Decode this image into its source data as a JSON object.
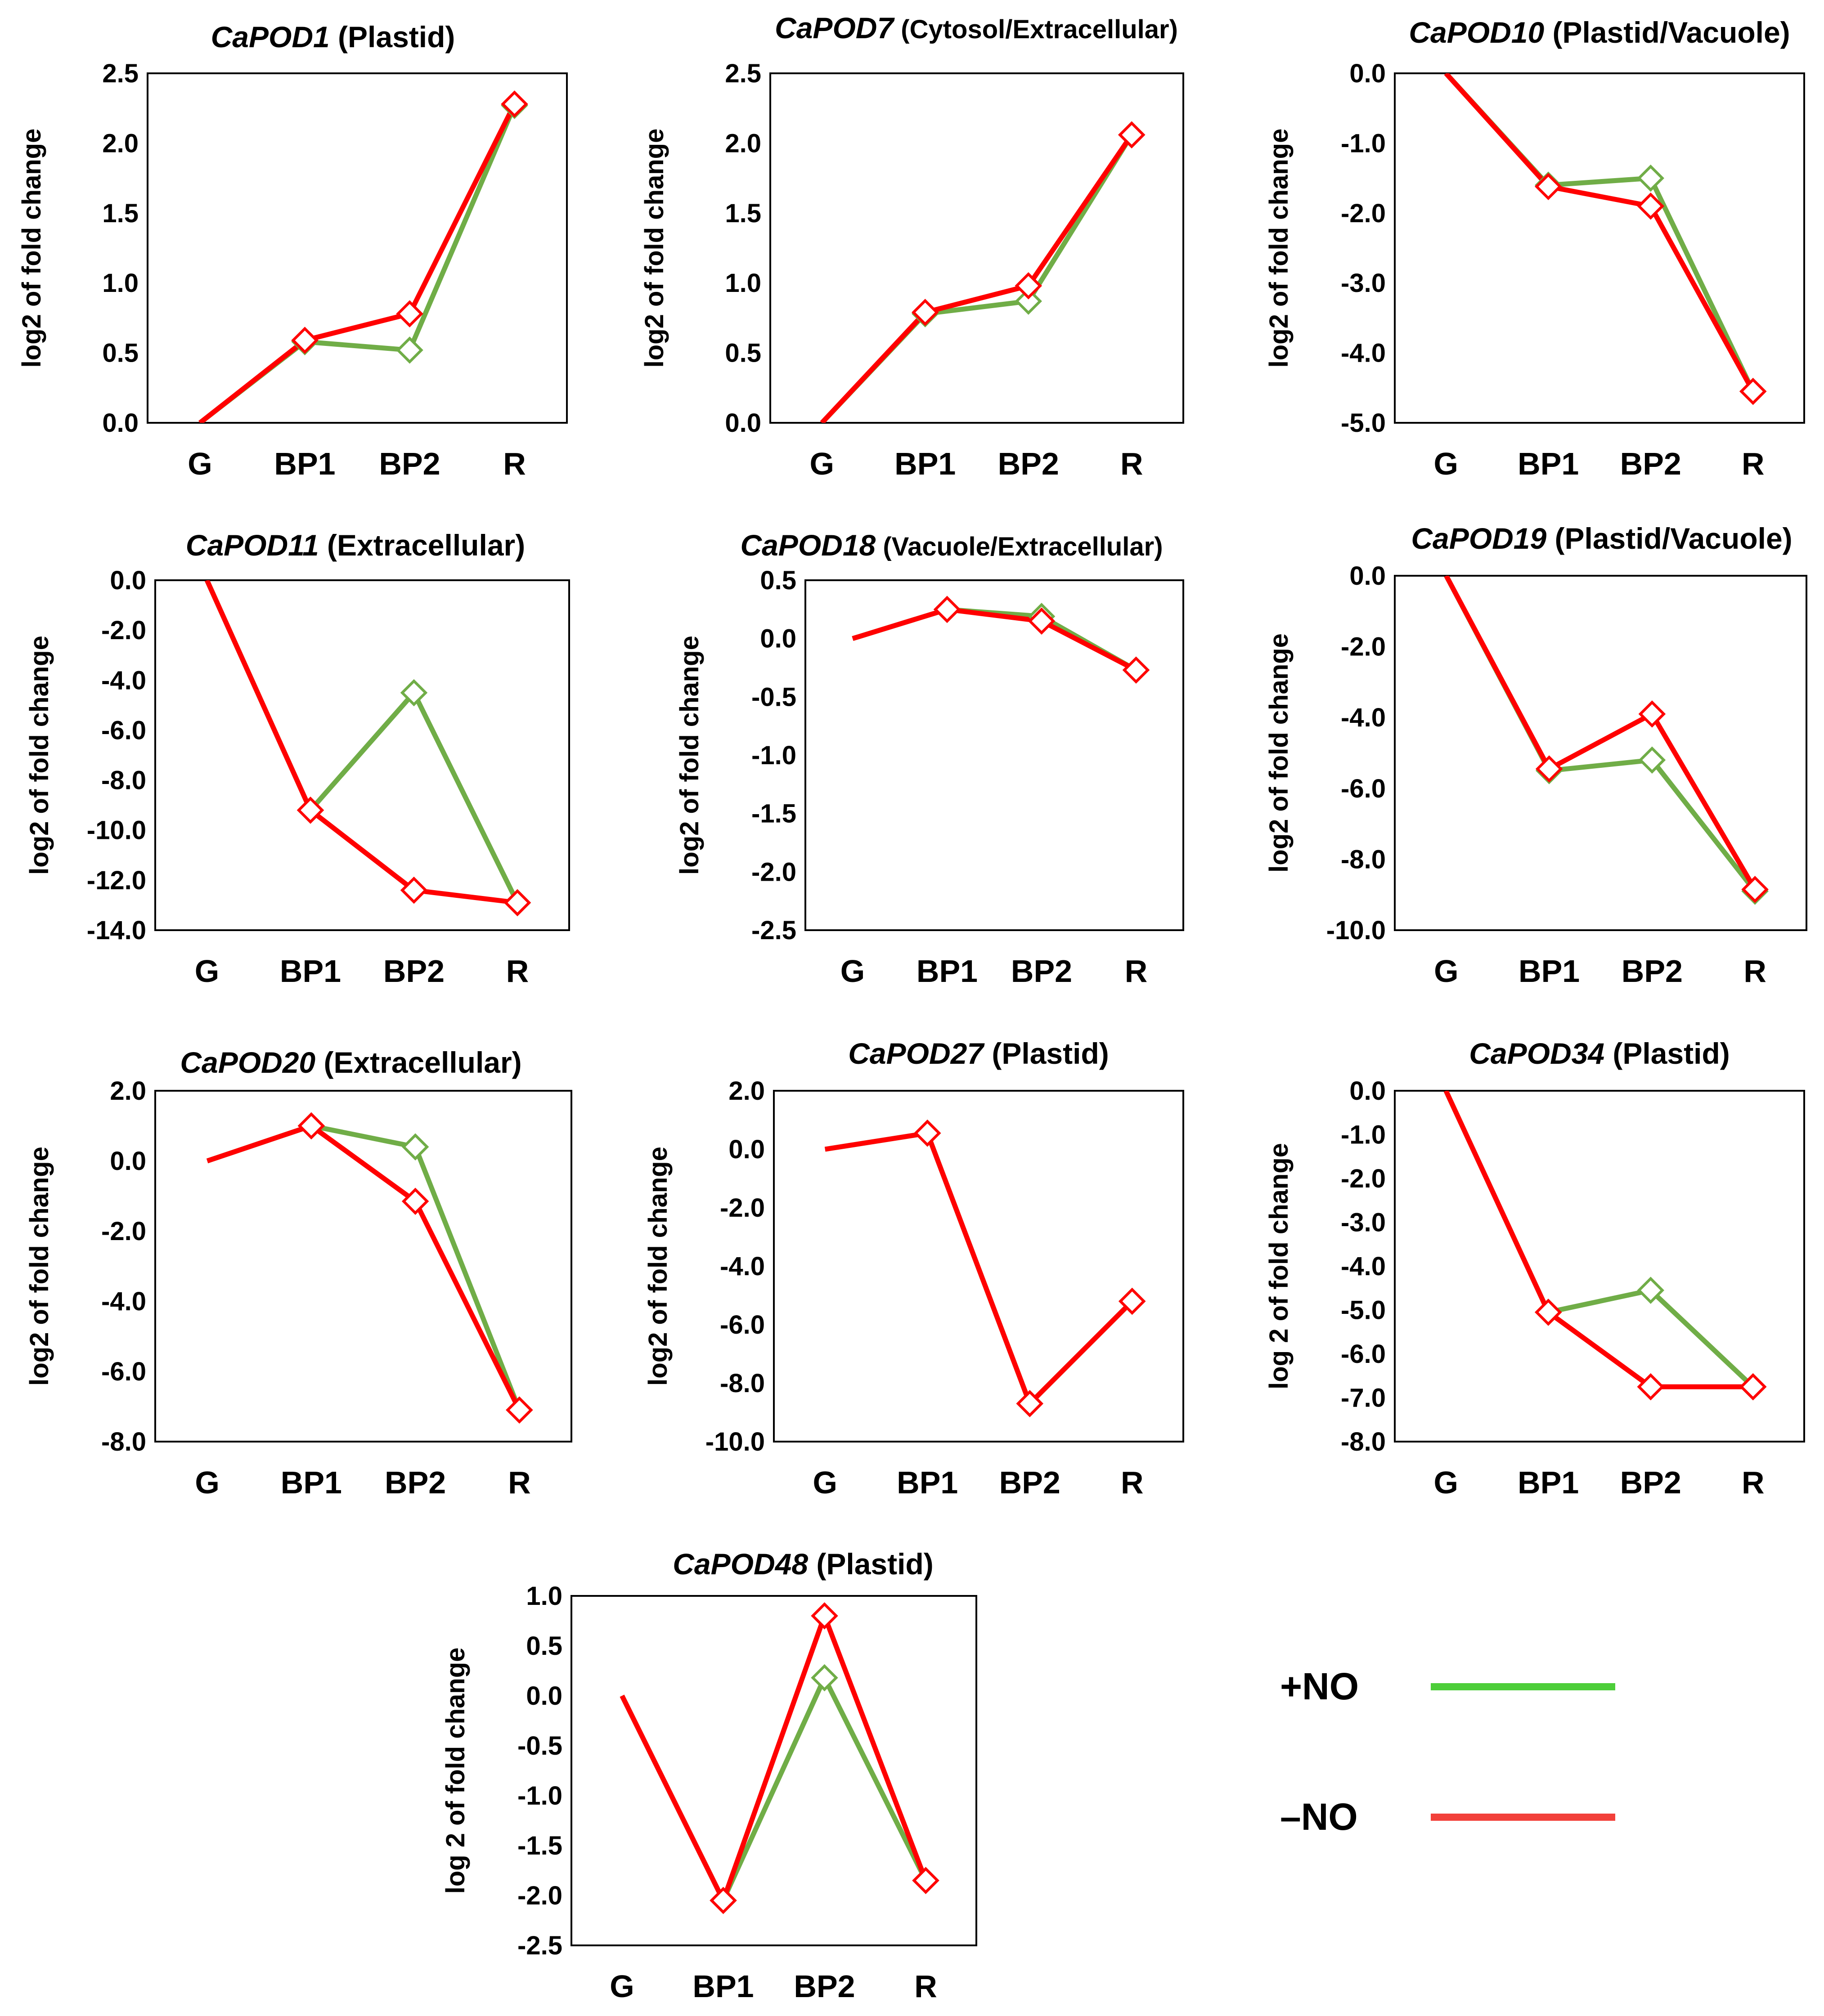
{
  "legend": [
    {
      "label": "+NO",
      "color": "#4dce3a"
    },
    {
      "label": "–NO",
      "color": "#f2403a"
    }
  ],
  "colors": {
    "plus_line": "#70ad47",
    "minus_line": "#ff0000",
    "marker_plus": "#70ad47",
    "marker_minus": "#ff0000",
    "legend_plus": "#4dce3a",
    "legend_minus": "#f2403a"
  },
  "chart_data": [
    {
      "type": "line",
      "gene": "CaPOD1",
      "loc": " (Plastid)",
      "ylabel": "log2 of fold change",
      "categories": [
        "G",
        "BP1",
        "BP2",
        "R"
      ],
      "ylim": [
        0,
        2.5
      ],
      "yticks": [
        "0.0",
        "0.5",
        "1.0",
        "1.5",
        "2.0",
        "2.5"
      ],
      "series": [
        {
          "name": "+NO",
          "values": [
            0,
            0.58,
            0.52,
            2.27
          ]
        },
        {
          "name": "–NO",
          "values": [
            0,
            0.59,
            0.78,
            2.28
          ]
        }
      ]
    },
    {
      "type": "line",
      "gene": "CaPOD7",
      "loc": " (Cytosol/Extracellular)",
      "ylabel": "log2 of fold change",
      "categories": [
        "G",
        "BP1",
        "BP2",
        "R"
      ],
      "ylim": [
        0,
        2.5
      ],
      "yticks": [
        "0.0",
        "0.5",
        "1.0",
        "1.5",
        "2.0",
        "2.5"
      ],
      "series": [
        {
          "name": "+NO",
          "values": [
            0,
            0.78,
            0.87,
            2.06
          ]
        },
        {
          "name": "–NO",
          "values": [
            0,
            0.79,
            0.98,
            2.06
          ]
        }
      ]
    },
    {
      "type": "line",
      "gene": "CaPOD10",
      "loc": " (Plastid/Vacuole)",
      "ylabel": "log2 of fold change",
      "categories": [
        "G",
        "BP1",
        "BP2",
        "R"
      ],
      "ylim": [
        -5,
        0
      ],
      "yticks": [
        "0.0",
        "-1.0",
        "-2.0",
        "-3.0",
        "-4.0",
        "-5.0"
      ],
      "series": [
        {
          "name": "+NO",
          "values": [
            0,
            -1.6,
            -1.5,
            -4.55
          ]
        },
        {
          "name": "–NO",
          "values": [
            0,
            -1.62,
            -1.9,
            -4.55
          ]
        }
      ]
    },
    {
      "type": "line",
      "gene": "CaPOD11",
      "loc": " (Extracellular)",
      "ylabel": "log2 of fold change",
      "categories": [
        "G",
        "BP1",
        "BP2",
        "R"
      ],
      "ylim": [
        -14,
        0
      ],
      "yticks": [
        "0.0",
        "-2.0",
        "-4.0",
        "-6.0",
        "-8.0",
        "-10.0",
        "-12.0",
        "-14.0"
      ],
      "series": [
        {
          "name": "+NO",
          "values": [
            0,
            -9.2,
            -4.5,
            -12.9
          ]
        },
        {
          "name": "–NO",
          "values": [
            0,
            -9.2,
            -12.4,
            -12.9
          ]
        }
      ]
    },
    {
      "type": "line",
      "gene": "CaPOD18",
      "loc": " (Vacuole/Extracellular)",
      "ylabel": "log2 of fold change",
      "categories": [
        "G",
        "BP1",
        "BP2",
        "R"
      ],
      "ylim": [
        -2.5,
        0.5
      ],
      "yticks": [
        "0.5",
        "0.0",
        "-0.5",
        "-1.0",
        "-1.5",
        "-2.0",
        "-2.5"
      ],
      "series": [
        {
          "name": "+NO",
          "values": [
            0,
            0.25,
            0.19,
            -0.27
          ]
        },
        {
          "name": "–NO",
          "values": [
            0,
            0.25,
            0.15,
            -0.27
          ]
        }
      ]
    },
    {
      "type": "line",
      "gene": "CaPOD19",
      "loc": " (Plastid/Vacuole)",
      "ylabel": "log2 of fold change",
      "categories": [
        "G",
        "BP1",
        "BP2",
        "R"
      ],
      "ylim": [
        -10,
        0
      ],
      "yticks": [
        "0.0",
        "-2.0",
        "-4.0",
        "-6.0",
        "-8.0",
        "-10.0"
      ],
      "series": [
        {
          "name": "+NO",
          "values": [
            0,
            -5.5,
            -5.2,
            -8.9
          ]
        },
        {
          "name": "–NO",
          "values": [
            0,
            -5.45,
            -3.9,
            -8.85
          ]
        }
      ]
    },
    {
      "type": "line",
      "gene": "CaPOD20",
      "loc": " (Extracellular)",
      "ylabel": "log2 of fold change",
      "categories": [
        "G",
        "BP1",
        "BP2",
        "R"
      ],
      "ylim": [
        -8,
        2
      ],
      "yticks": [
        "2.0",
        "0.0",
        "-2.0",
        "-4.0",
        "-6.0",
        "-8.0"
      ],
      "series": [
        {
          "name": "+NO",
          "values": [
            0,
            1.0,
            0.4,
            -7.1
          ]
        },
        {
          "name": "–NO",
          "values": [
            0,
            1.0,
            -1.15,
            -7.1
          ]
        }
      ]
    },
    {
      "type": "line",
      "gene": "CaPOD27",
      "loc": " (Plastid)",
      "ylabel": "log2 of fold change",
      "categories": [
        "G",
        "BP1",
        "BP2",
        "R"
      ],
      "ylim": [
        -10,
        2
      ],
      "yticks": [
        "2.0",
        "0.0",
        "-2.0",
        "-4.0",
        "-6.0",
        "-8.0",
        "-10.0"
      ],
      "series": [
        {
          "name": "+NO",
          "values": [
            0,
            0.55,
            -8.7,
            -5.2
          ]
        },
        {
          "name": "–NO",
          "values": [
            0,
            0.55,
            -8.7,
            -5.2
          ]
        }
      ]
    },
    {
      "type": "line",
      "gene": "CaPOD34",
      "loc": " (Plastid)",
      "ylabel": "log 2 of fold change",
      "categories": [
        "G",
        "BP1",
        "BP2",
        "R"
      ],
      "ylim": [
        -8,
        0
      ],
      "yticks": [
        "0.0",
        "-1.0",
        "-2.0",
        "-3.0",
        "-4.0",
        "-5.0",
        "-6.0",
        "-7.0",
        "-8.0"
      ],
      "series": [
        {
          "name": "+NO",
          "values": [
            0,
            -5.05,
            -4.55,
            -6.75
          ]
        },
        {
          "name": "–NO",
          "values": [
            0,
            -5.05,
            -6.75,
            -6.75
          ]
        }
      ]
    },
    {
      "type": "line",
      "gene": "CaPOD48",
      "loc": " (Plastid)",
      "ylabel": "log 2 of fold change",
      "categories": [
        "G",
        "BP1",
        "BP2",
        "R"
      ],
      "ylim": [
        -2.5,
        1.0
      ],
      "yticks": [
        "1.0",
        "0.5",
        "0.0",
        "-0.5",
        "-1.0",
        "-1.5",
        "-2.0",
        "-2.5"
      ],
      "series": [
        {
          "name": "+NO",
          "values": [
            0,
            -2.05,
            0.18,
            -1.85
          ]
        },
        {
          "name": "–NO",
          "values": [
            0,
            -2.05,
            0.8,
            -1.85
          ]
        }
      ]
    }
  ]
}
